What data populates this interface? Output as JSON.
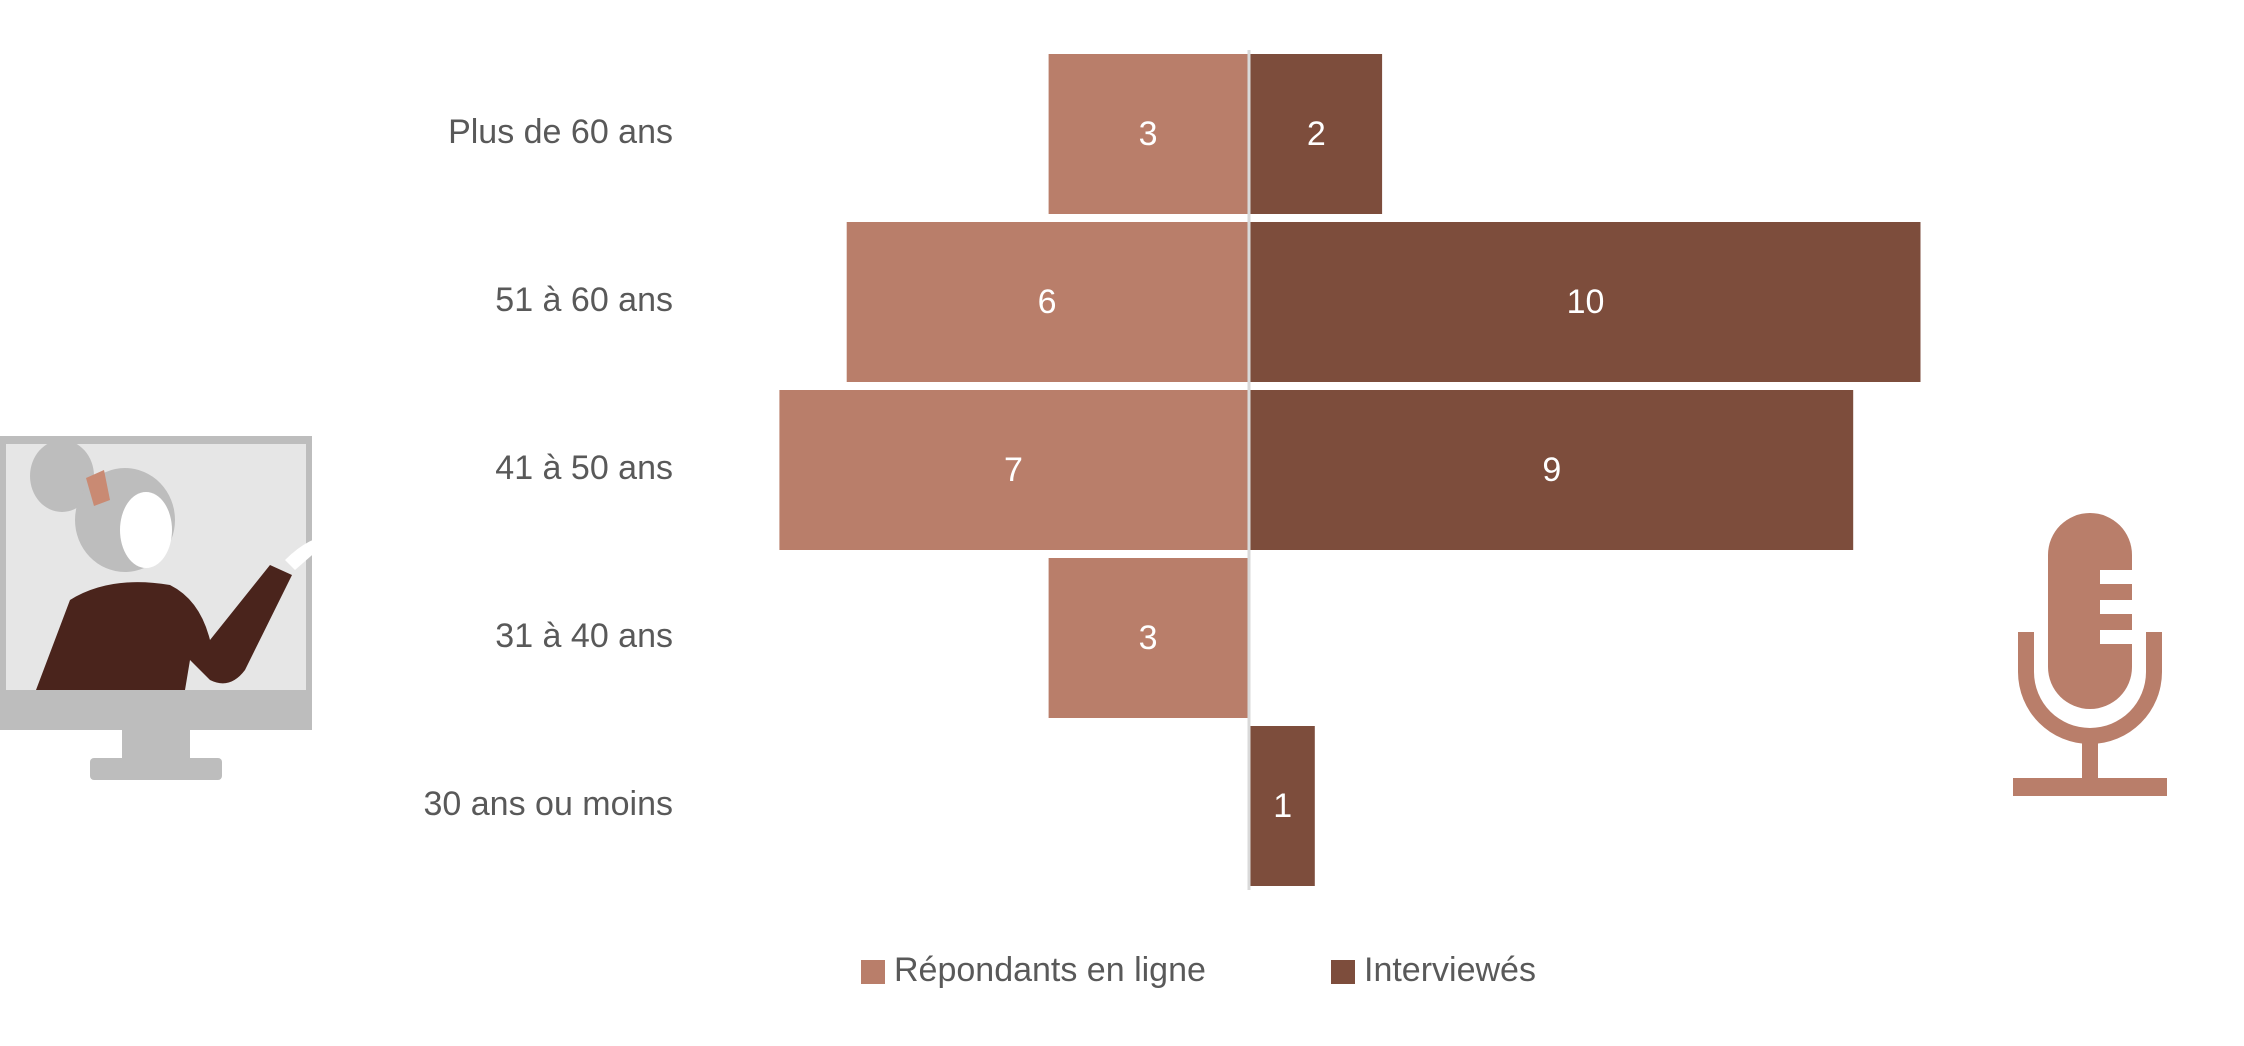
{
  "chart_data": {
    "type": "diverging-bar",
    "categories": [
      "Plus de 60 ans",
      "51 à 60 ans",
      "41 à 50 ans",
      "31 à 40 ans",
      "30 ans ou moins"
    ],
    "series": [
      {
        "name": "Répondants en ligne",
        "color": "#b97e6a",
        "values": [
          3,
          6,
          7,
          3,
          null
        ]
      },
      {
        "name": "Interviewés",
        "color": "#7d4d3c",
        "values": [
          2,
          10,
          9,
          null,
          1
        ]
      }
    ],
    "legend": "bottom"
  }
}
